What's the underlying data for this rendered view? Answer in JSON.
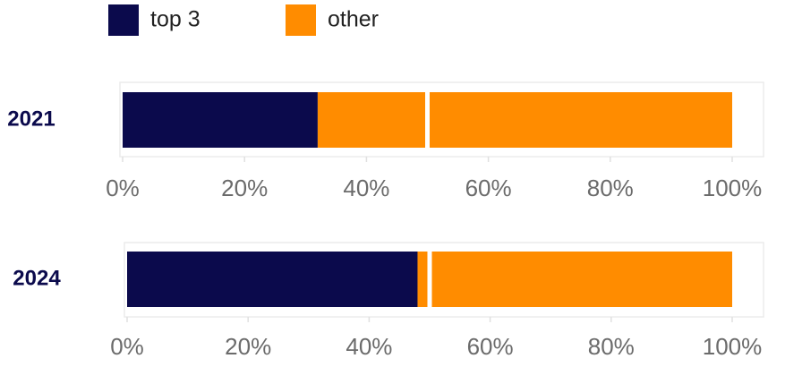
{
  "chart_data": [
    {
      "type": "bar",
      "orientation": "horizontal",
      "stacked": true,
      "categories": [
        "2021"
      ],
      "series": [
        {
          "name": "top 3",
          "color": "#0b0a4c",
          "values": [
            32
          ]
        },
        {
          "name": "other",
          "color": "#ff8c00",
          "values": [
            68
          ]
        }
      ],
      "xlim": [
        0,
        100
      ],
      "xticks": [
        {
          "value": 0,
          "label": "0%"
        },
        {
          "value": 20,
          "label": "20%"
        },
        {
          "value": 40,
          "label": "40%"
        },
        {
          "value": 60,
          "label": "60%"
        },
        {
          "value": 80,
          "label": "80%"
        },
        {
          "value": 100,
          "label": "100%"
        }
      ],
      "vline": 50,
      "legend": "top"
    },
    {
      "type": "bar",
      "orientation": "horizontal",
      "stacked": true,
      "categories": [
        "2024"
      ],
      "series": [
        {
          "name": "top 3",
          "color": "#0b0a4c",
          "values": [
            48
          ]
        },
        {
          "name": "other",
          "color": "#ff8c00",
          "values": [
            52
          ]
        }
      ],
      "xlim": [
        0,
        100
      ],
      "xticks": [
        {
          "value": 0,
          "label": "0%"
        },
        {
          "value": 20,
          "label": "20%"
        },
        {
          "value": 40,
          "label": "40%"
        },
        {
          "value": 60,
          "label": "60%"
        },
        {
          "value": 80,
          "label": "80%"
        },
        {
          "value": 100,
          "label": "100%"
        }
      ],
      "vline": 50
    }
  ]
}
